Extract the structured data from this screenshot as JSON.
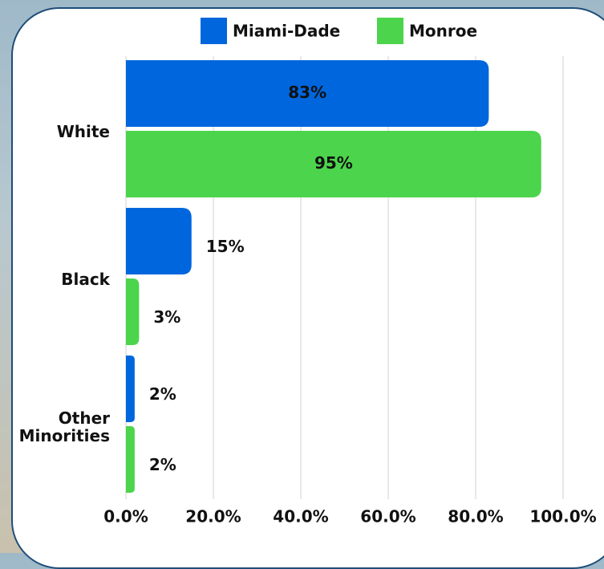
{
  "chart_data": {
    "type": "bar",
    "orientation": "horizontal",
    "categories": [
      "White",
      "Black",
      "Other Minorities"
    ],
    "series": [
      {
        "name": "Miami-Dade",
        "color": "#0066dd",
        "values": [
          83,
          15,
          2
        ],
        "value_labels": [
          "83%",
          "15%",
          "2%"
        ]
      },
      {
        "name": "Monroe",
        "color": "#4cd44c",
        "values": [
          95,
          3,
          2
        ],
        "value_labels": [
          "95%",
          "3%",
          "2%"
        ]
      }
    ],
    "xlim": [
      0,
      100
    ],
    "xticks": [
      {
        "value": 0,
        "label": "0.0%"
      },
      {
        "value": 20,
        "label": "20.0%"
      },
      {
        "value": 40,
        "label": "40.0%"
      },
      {
        "value": 60,
        "label": "60.0%"
      },
      {
        "value": 80,
        "label": "80.0%"
      },
      {
        "value": 100,
        "label": "100.0%"
      }
    ],
    "grid": true,
    "legend": "top"
  }
}
